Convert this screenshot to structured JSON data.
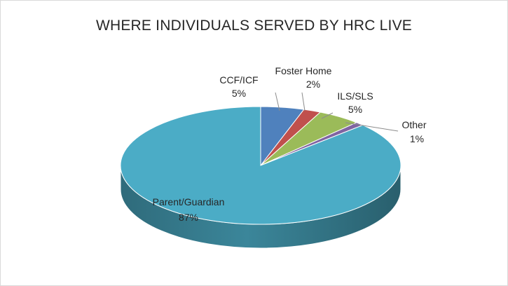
{
  "chart_data": {
    "type": "pie",
    "title": "WHERE INDIVIDUALS SERVED BY HRC LIVE",
    "three_d": true,
    "slices": [
      {
        "name": "Parent/Guardian",
        "value": 87,
        "label": "87%",
        "color": "#4bacc6"
      },
      {
        "name": "CCF/ICF",
        "value": 5,
        "label": "5%",
        "color": "#4f81bd"
      },
      {
        "name": "Foster Home",
        "value": 2,
        "label": "2%",
        "color": "#c0504d"
      },
      {
        "name": "ILS/SLS",
        "value": 5,
        "label": "5%",
        "color": "#9bbb59"
      },
      {
        "name": "Other",
        "value": 1,
        "label": "1%",
        "color": "#8064a2"
      }
    ]
  }
}
